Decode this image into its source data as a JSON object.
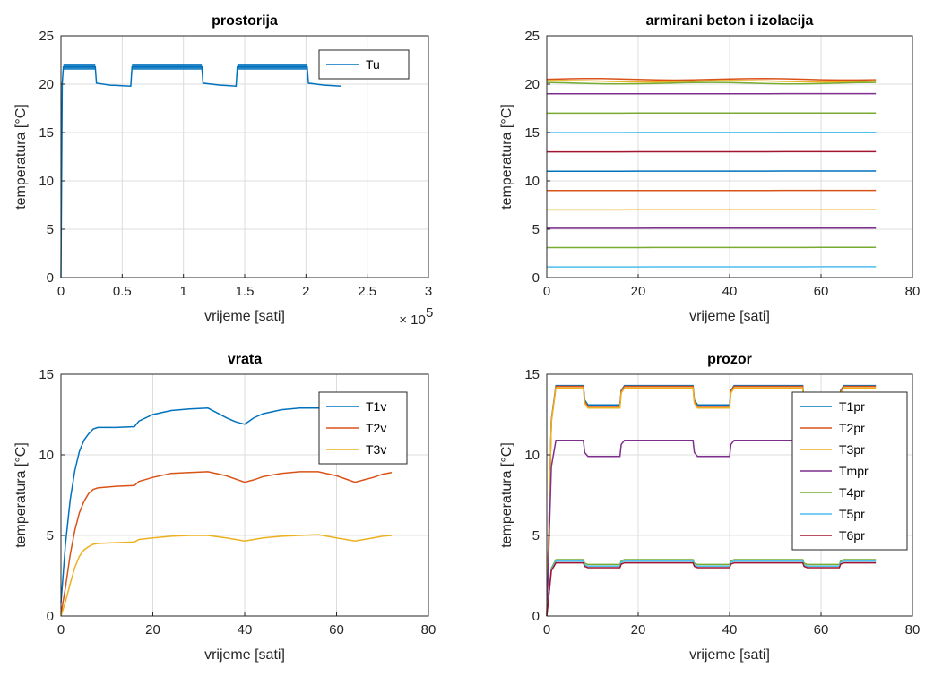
{
  "chart_data": [
    {
      "type": "line",
      "title": "prostorija",
      "xlabel": "vrijeme [sati]",
      "ylabel": "temperatura [°C]",
      "xlim": [
        0,
        3
      ],
      "ylim": [
        0,
        25
      ],
      "xticks": [
        0,
        0.5,
        1,
        1.5,
        2,
        2.5,
        3
      ],
      "xtick_labels": [
        "0",
        "0.5",
        "1",
        "1.5",
        "2",
        "2.5",
        "3"
      ],
      "yticks": [
        0,
        5,
        10,
        15,
        20,
        25
      ],
      "x_exponent_label": "× 10",
      "x_exponent_power": "5",
      "grid": true,
      "legend": "top-right",
      "series": [
        {
          "name": "Tu",
          "color": "#0072BD",
          "x": [
            0,
            0.01,
            0.02,
            0.28,
            0.29,
            0.4,
            0.57,
            0.58,
            1.15,
            1.16,
            1.3,
            1.43,
            1.44,
            2.01,
            2.02,
            2.15,
            2.29
          ],
          "y": [
            0,
            20,
            21.8,
            21.8,
            20.1,
            19.9,
            19.8,
            21.8,
            21.8,
            20.1,
            19.9,
            19.8,
            21.8,
            21.8,
            20.1,
            19.9,
            19.8
          ]
        }
      ]
    },
    {
      "type": "line",
      "title": "armirani beton i izolacija",
      "xlabel": "vrijeme [sati]",
      "ylabel": "temperatura [°C]",
      "xlim": [
        0,
        80
      ],
      "ylim": [
        0,
        25
      ],
      "xticks": [
        0,
        20,
        40,
        60,
        80
      ],
      "yticks": [
        0,
        5,
        10,
        15,
        20,
        25
      ],
      "grid": true,
      "x_end": 72,
      "series": [
        {
          "color": "#D95319",
          "level": 20.5
        },
        {
          "color": "#EDB120",
          "level": 20.3
        },
        {
          "color": "#77AC30",
          "level": 20.1
        },
        {
          "color": "#7E2F8E",
          "level": 19.0
        },
        {
          "color": "#77AC30",
          "level": 17.0
        },
        {
          "color": "#4DBEEE",
          "level": 15.0
        },
        {
          "color": "#A2142F",
          "level": 13.0
        },
        {
          "color": "#0072BD",
          "level": 11.0
        },
        {
          "color": "#D95319",
          "level": 9.0
        },
        {
          "color": "#EDB120",
          "level": 7.0
        },
        {
          "color": "#7E2F8E",
          "level": 5.1
        },
        {
          "color": "#77AC30",
          "level": 3.1
        },
        {
          "color": "#4DBEEE",
          "level": 1.1
        }
      ]
    },
    {
      "type": "line",
      "title": "vrata",
      "xlabel": "vrijeme [sati]",
      "ylabel": "temperatura [°C]",
      "xlim": [
        0,
        80
      ],
      "ylim": [
        0,
        15
      ],
      "xticks": [
        0,
        20,
        40,
        60,
        80
      ],
      "yticks": [
        0,
        5,
        10,
        15
      ],
      "grid": true,
      "legend": "top-right",
      "series": [
        {
          "name": "T1v",
          "color": "#0072BD",
          "x": [
            0,
            1,
            2,
            3,
            4,
            5,
            6,
            7,
            8,
            12,
            16,
            17,
            20,
            24,
            28,
            32,
            34,
            36,
            38,
            40,
            42,
            44,
            48,
            52,
            56,
            58
          ],
          "y": [
            0.8,
            4.5,
            7.2,
            9.0,
            10.2,
            10.9,
            11.3,
            11.6,
            11.7,
            11.7,
            11.75,
            12.1,
            12.5,
            12.75,
            12.85,
            12.9,
            12.6,
            12.3,
            12.05,
            11.9,
            12.3,
            12.55,
            12.8,
            12.9,
            12.9,
            12.9
          ]
        },
        {
          "name": "T2v",
          "color": "#D95319",
          "x": [
            0,
            1,
            2,
            3,
            4,
            5,
            6,
            7,
            8,
            12,
            16,
            17,
            20,
            24,
            28,
            32,
            36,
            40,
            42,
            44,
            48,
            52,
            56,
            60,
            62,
            64,
            66,
            68,
            70,
            72
          ],
          "y": [
            0.1,
            1.8,
            3.8,
            5.3,
            6.4,
            7.1,
            7.6,
            7.85,
            7.95,
            8.05,
            8.1,
            8.35,
            8.6,
            8.85,
            8.9,
            8.95,
            8.7,
            8.3,
            8.45,
            8.65,
            8.85,
            8.95,
            8.95,
            8.7,
            8.5,
            8.3,
            8.45,
            8.6,
            8.8,
            8.9
          ]
        },
        {
          "name": "T3v",
          "color": "#EDB120",
          "x": [
            0,
            1,
            2,
            3,
            4,
            5,
            6,
            7,
            8,
            12,
            16,
            17,
            20,
            24,
            28,
            32,
            36,
            40,
            42,
            44,
            48,
            52,
            56,
            60,
            62,
            64,
            66,
            68,
            70,
            72
          ],
          "y": [
            0.0,
            0.9,
            2.0,
            3.0,
            3.7,
            4.1,
            4.3,
            4.45,
            4.5,
            4.55,
            4.6,
            4.75,
            4.85,
            4.95,
            5.0,
            5.0,
            4.85,
            4.65,
            4.75,
            4.85,
            4.95,
            5.0,
            5.05,
            4.85,
            4.75,
            4.65,
            4.75,
            4.85,
            4.95,
            5.0
          ]
        }
      ]
    },
    {
      "type": "line",
      "title": "prozor",
      "xlabel": "vrijeme [sati]",
      "ylabel": "temperatura [°C]",
      "xlim": [
        0,
        80
      ],
      "ylim": [
        0,
        15
      ],
      "xticks": [
        0,
        20,
        40,
        60,
        80
      ],
      "yticks": [
        0,
        5,
        10,
        15
      ],
      "grid": true,
      "legend": "top-right",
      "series": [
        {
          "name": "T1pr",
          "color": "#0072BD",
          "high": 14.3,
          "low": 13.1
        },
        {
          "name": "T2pr",
          "color": "#D95319",
          "high": 14.25,
          "low": 13.0
        },
        {
          "name": "T3pr",
          "color": "#EDB120",
          "high": 14.15,
          "low": 12.9
        },
        {
          "name": "Tmpr",
          "color": "#7E2F8E",
          "high": 10.9,
          "low": 9.9
        },
        {
          "name": "T4pr",
          "color": "#77AC30",
          "high": 3.5,
          "low": 3.2
        },
        {
          "name": "T5pr",
          "color": "#4DBEEE",
          "high": 3.4,
          "low": 3.1
        },
        {
          "name": "T6pr",
          "color": "#A2142F",
          "high": 3.3,
          "low": 3.0
        }
      ],
      "x_end": 72,
      "period_on": [
        [
          2,
          8
        ],
        [
          16,
          32
        ],
        [
          40,
          56
        ],
        [
          64,
          72
        ]
      ],
      "period_off": [
        [
          8,
          16
        ],
        [
          32,
          40
        ],
        [
          56,
          64
        ]
      ]
    }
  ]
}
